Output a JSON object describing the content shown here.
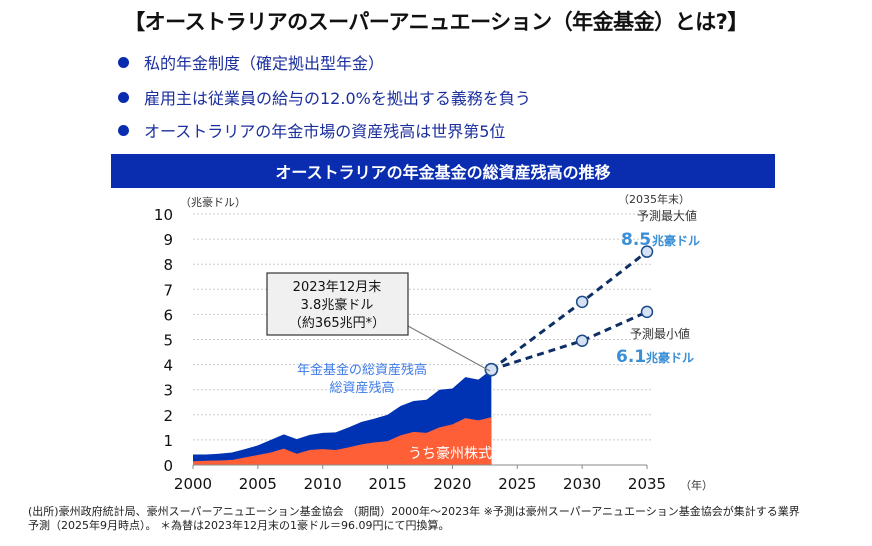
{
  "title": "【オーストラリアのスーパーアニュエーション（年金基金）とは?】",
  "bullets": [
    "私的年金制度（確定拠出型年金）",
    "雇用主は従業員の給与の12.0%を拠出する義務を負う",
    "オーストラリアの年金市場の資産残高は世界第5位"
  ],
  "colors": {
    "accent": "#0a2db0",
    "total": "#0033b4",
    "equity": "#ff5f37",
    "projection": "#0d2f66",
    "label_blue": "#3b8fd6"
  },
  "chart_data": {
    "type": "area",
    "title": "オーストラリアの年金基金の総資産残高の推移",
    "ylabel": "（兆豪ドル）",
    "xlabel": "（年）",
    "ylim": [
      0,
      10
    ],
    "xlim": [
      2000,
      2035
    ],
    "yticks": [
      "0",
      "1",
      "2",
      "3",
      "4",
      "5",
      "6",
      "7",
      "8",
      "9",
      "10"
    ],
    "xticks": [
      "2000",
      "2005",
      "2010",
      "2015",
      "2020",
      "2025",
      "2030",
      "2035"
    ],
    "grid": true,
    "x": [
      2000,
      2001,
      2002,
      2003,
      2004,
      2005,
      2006,
      2007,
      2008,
      2009,
      2010,
      2011,
      2012,
      2013,
      2014,
      2015,
      2016,
      2017,
      2018,
      2019,
      2020,
      2021,
      2022,
      2023
    ],
    "series": [
      {
        "name": "年金基金の総資産残高",
        "values": [
          0.42,
          0.42,
          0.45,
          0.5,
          0.63,
          0.78,
          1.0,
          1.22,
          1.03,
          1.2,
          1.28,
          1.3,
          1.5,
          1.72,
          1.85,
          2.0,
          2.35,
          2.55,
          2.6,
          3.0,
          3.05,
          3.5,
          3.4,
          3.8
        ]
      },
      {
        "name": "うち豪州株式",
        "values": [
          0.15,
          0.17,
          0.18,
          0.2,
          0.3,
          0.4,
          0.5,
          0.65,
          0.45,
          0.6,
          0.63,
          0.6,
          0.7,
          0.82,
          0.9,
          0.95,
          1.18,
          1.32,
          1.28,
          1.5,
          1.62,
          1.87,
          1.78,
          1.9
        ]
      }
    ],
    "projections": [
      {
        "x": [
          2023,
          2030,
          2035
        ],
        "values": [
          3.8,
          6.5,
          8.5
        ]
      },
      {
        "x": [
          2023,
          2030,
          2035
        ],
        "values": [
          3.8,
          4.95,
          6.1
        ]
      }
    ],
    "callout": {
      "line1": "2023年12月末",
      "line2": "3.8兆豪ドル",
      "line3": "（約365兆円*）"
    },
    "max_label": {
      "head": "（2035年末）",
      "name": "予測最大値",
      "value": "8.5",
      "unit": "兆豪ドル"
    },
    "min_label": {
      "name": "予測最小値",
      "value": "6.1",
      "unit": "兆豪ドル"
    }
  },
  "footnote": {
    "line1": "(出所)豪州政府統計局、豪州スーパーアニュエーション基金協会 （期間）2000年～2023年 ※予測は豪州スーパーアニュエーション基金協会が集計する業界",
    "line2": "予測（2025年9月時点）。 ＊為替は2023年12月末の1豪ドル＝96.09円にて円換算。"
  }
}
